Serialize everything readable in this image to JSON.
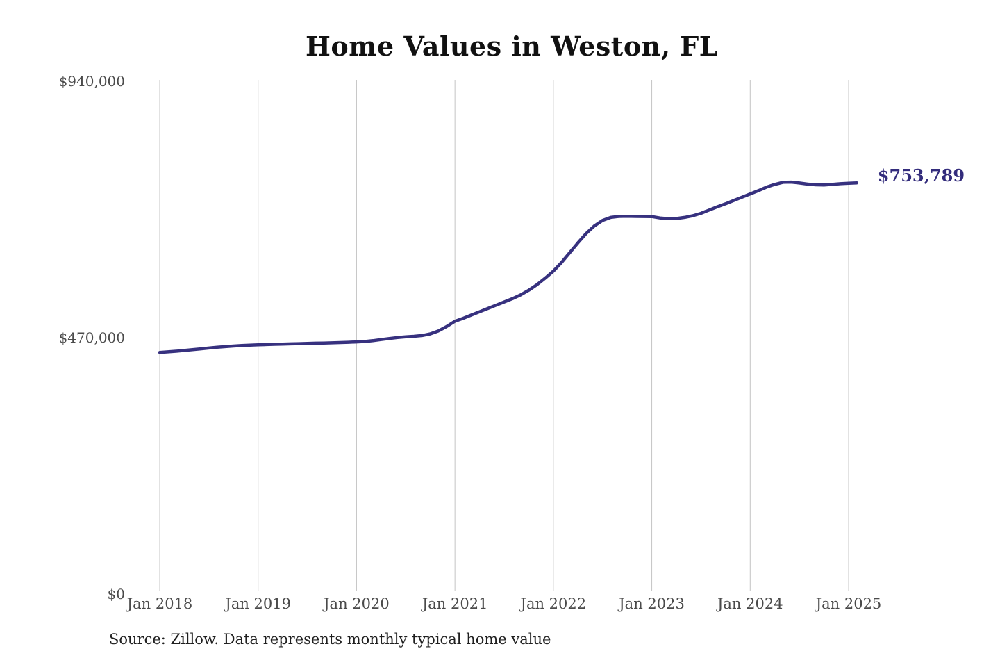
{
  "chart_data": {
    "type": "line",
    "title": "Home Values in Weston, FL",
    "source": "Source: Zillow. Data represents monthly typical home value",
    "latest_label": "$753,789",
    "latest_value": 753789,
    "ylim": [
      0,
      940000
    ],
    "grid": "vertical-only",
    "legend": "none",
    "y_ticks": [
      {
        "label": "$0",
        "value": 0
      },
      {
        "label": "$470,000",
        "value": 470000
      },
      {
        "label": "$940,000",
        "value": 940000
      }
    ],
    "x_ticks": [
      {
        "label": "Jan 2018",
        "month": 0
      },
      {
        "label": "Jan 2019",
        "month": 12
      },
      {
        "label": "Jan 2020",
        "month": 24
      },
      {
        "label": "Jan 2021",
        "month": 36
      },
      {
        "label": "Jan 2022",
        "month": 48
      },
      {
        "label": "Jan 2023",
        "month": 60
      },
      {
        "label": "Jan 2024",
        "month": 72
      },
      {
        "label": "Jan 2025",
        "month": 84
      }
    ],
    "series": [
      {
        "name": "Monthly typical home value",
        "start": "Jan 2018",
        "frequency": "monthly",
        "values": [
          443000,
          444000,
          445200,
          446500,
          448000,
          449500,
          451000,
          452400,
          453600,
          454700,
          455600,
          456300,
          456900,
          457400,
          457900,
          458300,
          458700,
          459100,
          459500,
          459900,
          460200,
          460600,
          461100,
          461600,
          462200,
          463000,
          464500,
          466500,
          468500,
          470200,
          471500,
          472600,
          474000,
          477000,
          482500,
          490500,
          500000,
          505500,
          511500,
          517500,
          523500,
          529500,
          535500,
          541500,
          548500,
          557000,
          567000,
          579000,
          592000,
          608000,
          626000,
          644000,
          661000,
          675000,
          685000,
          690500,
          692200,
          692500,
          692300,
          692100,
          692000,
          689500,
          688000,
          688500,
          690500,
          693500,
          698000,
          704000,
          710000,
          715500,
          721500,
          727500,
          733500,
          739500,
          746000,
          751000,
          754800,
          755200,
          753500,
          751500,
          750200,
          750000,
          751000,
          752200,
          753200,
          753789
        ]
      }
    ],
    "colors": {
      "line": "#37317f",
      "latest_label": "#332c7c",
      "grid": "#c4c4c4",
      "axis_text": "#4a4a4a",
      "title_text": "#111111",
      "source_text": "#1f1f1f",
      "background": "#ffffff"
    }
  }
}
